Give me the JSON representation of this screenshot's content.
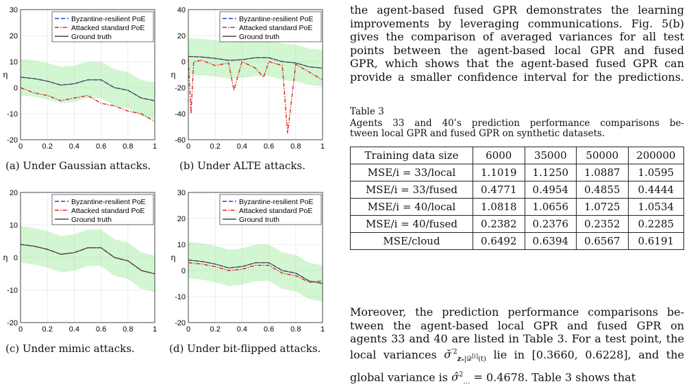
{
  "plot_labels": {
    "legend": [
      "Byzantine-resilient PoE",
      "Attacked standard PoE",
      "Ground truth"
    ],
    "ylabel": "η",
    "xlabel": "z*"
  },
  "chart_data": [
    {
      "type": "line",
      "title": "",
      "xlabel": "z*",
      "ylabel": "η",
      "xlim": [
        0,
        1
      ],
      "ylim": [
        -20,
        30
      ],
      "xticks": [
        "0",
        "0.2",
        "0.4",
        "0.6",
        "0.8",
        "1"
      ],
      "yticks": [
        "30",
        "20",
        "10",
        "0",
        "-10",
        "-20"
      ],
      "legend_position": "top-right",
      "series": [
        {
          "name": "Byzantine-resilient PoE",
          "color": "#1f3fd6",
          "style": "dashed",
          "x": [
            0,
            0.1,
            0.2,
            0.3,
            0.4,
            0.5,
            0.6,
            0.7,
            0.8,
            0.9,
            1
          ],
          "y": [
            4,
            3.5,
            2.5,
            1,
            1.5,
            3,
            3,
            0,
            -1,
            -4,
            -5
          ]
        },
        {
          "name": "Attacked standard PoE",
          "color": "#e0201f",
          "style": "dashdot",
          "x": [
            0,
            0.1,
            0.2,
            0.3,
            0.4,
            0.5,
            0.6,
            0.7,
            0.8,
            0.9,
            1
          ],
          "y": [
            0,
            -2,
            -3,
            -5,
            -4,
            -3,
            -6,
            -7,
            -9,
            -10,
            -13
          ]
        },
        {
          "name": "Ground truth",
          "color": "#444444",
          "style": "solid",
          "x": [
            0,
            0.1,
            0.2,
            0.3,
            0.4,
            0.5,
            0.6,
            0.7,
            0.8,
            0.9,
            1
          ],
          "y": [
            4,
            3.5,
            2.5,
            1,
            1.5,
            3,
            3,
            0,
            -1,
            -4,
            -5
          ]
        }
      ]
    },
    {
      "type": "line",
      "title": "",
      "xlabel": "z*",
      "ylabel": "η",
      "xlim": [
        0,
        1
      ],
      "ylim": [
        -60,
        40
      ],
      "xticks": [
        "0",
        "0.2",
        "0.4",
        "0.6",
        "0.8",
        "1"
      ],
      "yticks": [
        "40",
        "20",
        "0",
        "-20",
        "-40",
        "-60"
      ],
      "legend_position": "top-right",
      "series": [
        {
          "name": "Byzantine-resilient PoE",
          "color": "#1f3fd6",
          "style": "dashed",
          "x": [
            0,
            0.1,
            0.2,
            0.3,
            0.4,
            0.5,
            0.6,
            0.7,
            0.8,
            0.9,
            1
          ],
          "y": [
            4,
            3.5,
            2.5,
            1,
            1.5,
            3,
            3,
            0,
            -1,
            -4,
            -5
          ]
        },
        {
          "name": "Attacked standard PoE",
          "color": "#e0201f",
          "style": "dashdot",
          "x": [
            0,
            0.02,
            0.04,
            0.1,
            0.2,
            0.3,
            0.34,
            0.4,
            0.5,
            0.56,
            0.6,
            0.7,
            0.74,
            0.8,
            0.9,
            1
          ],
          "y": [
            2,
            -40,
            0,
            1,
            -3,
            -1,
            -22,
            0,
            -5,
            -12,
            0,
            -3,
            -55,
            -2,
            -8,
            -14
          ]
        },
        {
          "name": "Ground truth",
          "color": "#444444",
          "style": "solid",
          "x": [
            0,
            0.1,
            0.2,
            0.3,
            0.4,
            0.5,
            0.6,
            0.7,
            0.8,
            0.9,
            1
          ],
          "y": [
            4,
            3.5,
            2.5,
            1,
            1.5,
            3,
            3,
            0,
            -1,
            -4,
            -5
          ]
        }
      ]
    },
    {
      "type": "line",
      "title": "",
      "xlabel": "z*",
      "ylabel": "η",
      "xlim": [
        0,
        1
      ],
      "ylim": [
        -20,
        20
      ],
      "xticks": [
        "0",
        "0.2",
        "0.4",
        "0.6",
        "0.8",
        "1"
      ],
      "yticks": [
        "20",
        "10",
        "0",
        "-10",
        "-20"
      ],
      "legend_position": "top-right",
      "series": [
        {
          "name": "Byzantine-resilient PoE",
          "color": "#1f3fd6",
          "style": "dashed",
          "x": [
            0,
            0.1,
            0.2,
            0.3,
            0.4,
            0.5,
            0.6,
            0.7,
            0.8,
            0.9,
            1
          ],
          "y": [
            4,
            3.5,
            2.5,
            1,
            1.5,
            3,
            3,
            0,
            -1,
            -4,
            -5
          ]
        },
        {
          "name": "Attacked standard PoE",
          "color": "#e0201f",
          "style": "dashdot",
          "x": [
            0,
            0.1,
            0.2,
            0.3,
            0.4,
            0.5,
            0.6,
            0.7,
            0.8,
            0.9,
            1
          ],
          "y": [
            4,
            3.5,
            2.5,
            1,
            1.5,
            3,
            3,
            0,
            -1,
            -4,
            -5
          ]
        },
        {
          "name": "Ground truth",
          "color": "#444444",
          "style": "solid",
          "x": [
            0,
            0.1,
            0.2,
            0.3,
            0.4,
            0.5,
            0.6,
            0.7,
            0.8,
            0.9,
            1
          ],
          "y": [
            4,
            3.5,
            2.5,
            1,
            1.5,
            3,
            3,
            0,
            -1,
            -4,
            -5
          ]
        }
      ]
    },
    {
      "type": "line",
      "title": "",
      "xlabel": "z*",
      "ylabel": "η",
      "xlim": [
        0,
        1
      ],
      "ylim": [
        -20,
        30
      ],
      "xticks": [
        "0",
        "0.2",
        "0.4",
        "0.6",
        "0.8",
        "1"
      ],
      "yticks": [
        "30",
        "20",
        "10",
        "0",
        "-10",
        "-20"
      ],
      "legend_position": "top-right",
      "series": [
        {
          "name": "Byzantine-resilient PoE",
          "color": "#1f3fd6",
          "style": "dashed",
          "x": [
            0,
            0.1,
            0.2,
            0.3,
            0.4,
            0.5,
            0.6,
            0.7,
            0.8,
            0.9,
            1
          ],
          "y": [
            4,
            3.5,
            2.5,
            1,
            1.5,
            3,
            3,
            0,
            -1,
            -4,
            -5
          ]
        },
        {
          "name": "Attacked standard PoE",
          "color": "#e0201f",
          "style": "dashdot",
          "x": [
            0,
            0.1,
            0.2,
            0.3,
            0.4,
            0.5,
            0.6,
            0.7,
            0.8,
            0.9,
            1
          ],
          "y": [
            3,
            2.5,
            1.5,
            0,
            0.5,
            2,
            2,
            -1,
            -2,
            -4.5,
            -4
          ]
        },
        {
          "name": "Ground truth",
          "color": "#444444",
          "style": "solid",
          "x": [
            0,
            0.1,
            0.2,
            0.3,
            0.4,
            0.5,
            0.6,
            0.7,
            0.8,
            0.9,
            1
          ],
          "y": [
            4,
            3.5,
            2.5,
            1,
            1.5,
            3,
            3,
            0,
            -1,
            -4,
            -5
          ]
        }
      ]
    }
  ],
  "figures": {
    "a_caption": "(a) Under Gaussian attacks.",
    "b_caption": "(b) Under ALTE attacks.",
    "c_caption": "(c) Under mimic attacks.",
    "d_caption": "(d) Under bit-flipped attacks."
  },
  "text": {
    "para1_lines": [
      "the agent-based fused GPR demonstrates the learning",
      "improvements by leveraging communications. Fig. 5(b)",
      "gives the comparison of averaged variances for all test",
      "points between the agent-based local GPR and fused",
      "GPR, which shows that the agent-based fused GPR can",
      "provide a smaller confidence interval for the predictions."
    ],
    "para2": {
      "line1": "Moreover, the prediction performance comparisons be-",
      "line2": "tween the agent-based local GPR and fused GPR on",
      "line3": "agents 33 and 40 are listed in Table 3. For a test point, the",
      "line4_a": "local variances ",
      "line4_b": " lie in [0.3660, 0.6228], and the",
      "line5_a": "global variance is ",
      "line5_b": "0.4678. Table 3 shows that"
    }
  },
  "table3": {
    "label": "Table 3",
    "caption_line1": "Agents 33 and 40’s prediction performance comparisons be-",
    "caption_line2": "tween local GPR and fused GPR on synthetic datasets.",
    "header": [
      "Training data size",
      "6000",
      "35000",
      "50000",
      "200000"
    ],
    "rows": [
      [
        "MSE/i = 33/local",
        "1.1019",
        "1.1250",
        "1.0887",
        "1.0595"
      ],
      [
        "MSE/i = 33/fused",
        "0.4771",
        "0.4954",
        "0.4855",
        "0.4444"
      ],
      [
        "MSE/i = 40/local",
        "1.0818",
        "1.0656",
        "1.0725",
        "1.0534"
      ],
      [
        "MSE/i = 40/fused",
        "0.2382",
        "0.2376",
        "0.2352",
        "0.2285"
      ],
      [
        "MSE/cloud",
        "0.6492",
        "0.6394",
        "0.6567",
        "0.6191"
      ]
    ]
  }
}
